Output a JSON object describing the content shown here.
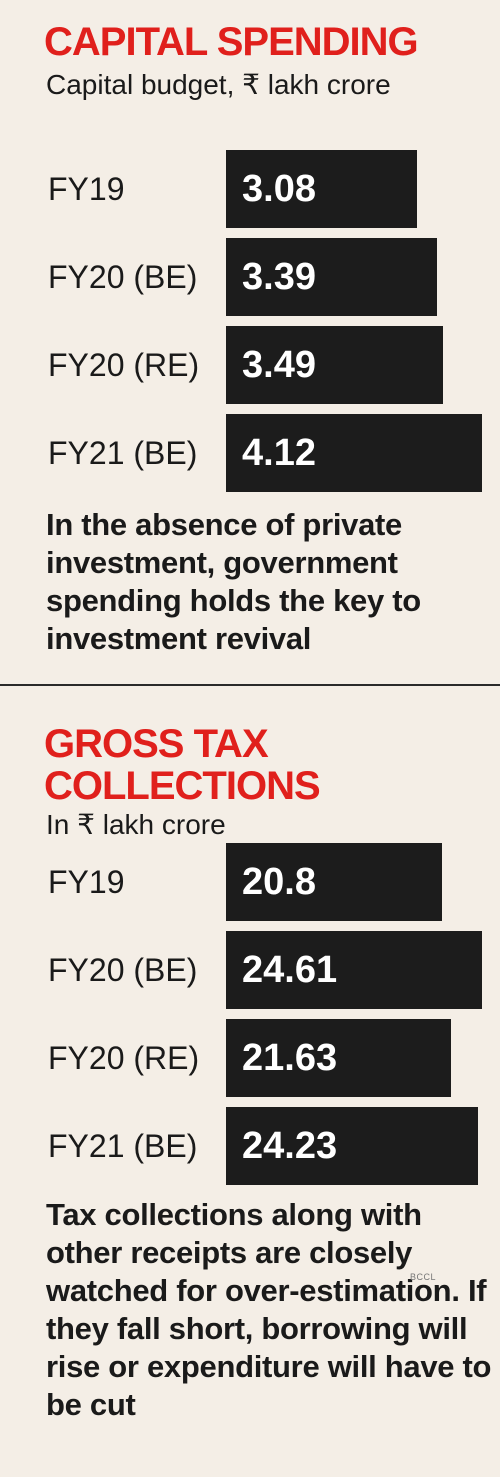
{
  "chart_data": [
    {
      "type": "bar",
      "title": "CAPITAL SPENDING",
      "subtitle": "Capital budget, ₹ lakh crore",
      "categories": [
        "FY19",
        "FY20 (BE)",
        "FY20 (RE)",
        "FY21 (BE)"
      ],
      "values": [
        3.08,
        3.39,
        3.49,
        4.12
      ],
      "value_labels": [
        "3.08",
        "3.39",
        "3.49",
        "4.12"
      ],
      "note": "In the absence of private investment, government spending holds the key to investment revival",
      "bar_color": "#1c1c1c",
      "title_color": "#e0201c"
    },
    {
      "type": "bar",
      "title_line1": "GROSS TAX",
      "title_line2": "COLLECTIONS",
      "subtitle": "In ₹ lakh crore",
      "categories": [
        "FY19",
        "FY20 (BE)",
        "FY20 (RE)",
        "FY21 (BE)"
      ],
      "values": [
        20.8,
        24.61,
        21.63,
        24.23
      ],
      "value_labels": [
        "20.8",
        "24.61",
        "21.63",
        "24.23"
      ],
      "note": "Tax collections along with other receipts are closely watched for over-estimation. If they fall short, borrowing will rise or expenditure will have to be cut",
      "bar_color": "#1c1c1c",
      "title_color": "#e0201c"
    }
  ],
  "watermark": "BCCL"
}
